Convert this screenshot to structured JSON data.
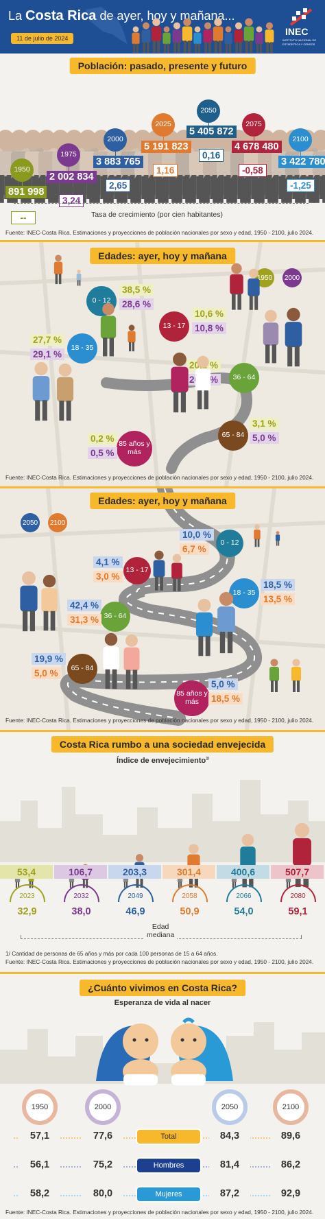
{
  "header": {
    "title_pre": "La",
    "title_bold": "Costa Rica",
    "title_post": "de ayer, hoy y mañana...",
    "date": "11 de julio de 2024",
    "logo": "INEC",
    "logo_sub1": "INSTITUTO NACIONAL DE",
    "logo_sub2": "ESTADÍSTICA Y CENSOS"
  },
  "poblacion": {
    "title": "Población: pasado, presente y futuro",
    "years": [
      {
        "year": "1950",
        "pop": "891 998",
        "rate": "--",
        "color": "#8a9a1e"
      },
      {
        "year": "1975",
        "pop": "2 002 834",
        "rate": "3,24",
        "color": "#7b3a8f"
      },
      {
        "year": "2000",
        "pop": "3 883 765",
        "rate": "2,65",
        "color": "#2e5fa3"
      },
      {
        "year": "2025",
        "pop": "5 191 823",
        "rate": "1,16",
        "color": "#e07a2e"
      },
      {
        "year": "2050",
        "pop": "5 405 872",
        "rate": "0,16",
        "color": "#1f5f8b"
      },
      {
        "year": "2075",
        "pop": "4 678 480",
        "rate": "-0,58",
        "color": "#b2243b"
      },
      {
        "year": "2100",
        "pop": "3 422 780",
        "rate": "-1,25",
        "color": "#2a8ed0"
      }
    ],
    "rate_label": "Tasa de crecimiento (por cien habitantes)",
    "source": "Fuente: INEC-Costa Rica. Estimaciones y proyecciones de población nacionales por sexo y edad, 1950 - 2100, julio 2024."
  },
  "edades1": {
    "title": "Edades: ayer, hoy y mañana",
    "legend": [
      {
        "year": "1950",
        "color": "#a0a11e"
      },
      {
        "year": "2000",
        "color": "#7b3a8f"
      }
    ],
    "groups": [
      {
        "label": "0 - 12",
        "v1": "38,5 %",
        "v2": "28,6 %",
        "color": "#1f7c9a"
      },
      {
        "label": "13 - 17",
        "v1": "10,6 %",
        "v2": "10,8 %",
        "color": "#b0233a"
      },
      {
        "label": "18 - 35",
        "v1": "27,7 %",
        "v2": "29,1 %",
        "color": "#2a8ed0"
      },
      {
        "label": "36 - 64",
        "v1": "20,1 %",
        "v2": "26,1 %",
        "color": "#6aa33a"
      },
      {
        "label": "65 - 84",
        "v1": "3,1 %",
        "v2": "5,0 %",
        "color": "#7a4a1e"
      },
      {
        "label": "85 años y más",
        "v1": "0,2 %",
        "v2": "0,5 %",
        "color": "#b0235f"
      }
    ],
    "source": "Fuente: INEC-Costa Rica. Estimaciones y proyecciones de población nacionales por sexo y edad, 1950 - 2100, julio 2024."
  },
  "edades2": {
    "title": "Edades: ayer, hoy y mañana",
    "legend": [
      {
        "year": "2050",
        "color": "#2e5fa3"
      },
      {
        "year": "2100",
        "color": "#e07a2e"
      }
    ],
    "groups": [
      {
        "label": "0 - 12",
        "v1": "10,0 %",
        "v2": "6,7 %",
        "color": "#1f7c9a"
      },
      {
        "label": "13 - 17",
        "v1": "4,1 %",
        "v2": "3,0 %",
        "color": "#b0233a"
      },
      {
        "label": "18 - 35",
        "v1": "18,5 %",
        "v2": "13,5 %",
        "color": "#2a8ed0"
      },
      {
        "label": "36 - 64",
        "v1": "42,4 %",
        "v2": "31,3 %",
        "color": "#6aa33a"
      },
      {
        "label": "65 - 84",
        "v1": "19,9 %",
        "v2": "5,0 %",
        "color": "#7a4a1e"
      },
      {
        "label": "85 años y más",
        "v1": "5,0 %",
        "v2": "18,5 %",
        "color": "#b0235f"
      }
    ],
    "source": "Fuente: INEC-Costa Rica. Estimaciones y proyecciones de población nacionales por sexo y edad, 1950 - 2100, julio 2024."
  },
  "envejecida": {
    "title": "Costa Rica rumbo a una sociedad envejecida",
    "subtitle": "Índice de envejecimiento",
    "sup": "1/",
    "items": [
      {
        "index": "53,4",
        "year": "2023",
        "median": "32,9",
        "color": "#a0a11e",
        "bg": "#e4e6a9"
      },
      {
        "index": "106,7",
        "year": "2032",
        "median": "38,0",
        "color": "#7b3a8f",
        "bg": "#dcc8e3"
      },
      {
        "index": "203,3",
        "year": "2049",
        "median": "46,9",
        "color": "#2e5fa3",
        "bg": "#c9d7ee"
      },
      {
        "index": "301,4",
        "year": "2058",
        "median": "50,9",
        "color": "#e07a2e",
        "bg": "#f7d8bd"
      },
      {
        "index": "400,6",
        "year": "2066",
        "median": "54,0",
        "color": "#1f7c9a",
        "bg": "#c3dbe4"
      },
      {
        "index": "507,7",
        "year": "2080",
        "median": "59,1",
        "color": "#b0233a",
        "bg": "#eec4cb"
      }
    ],
    "median_label1": "Edad",
    "median_label2": "mediana",
    "note": "1/ Cantidad de personas de 65 años y más por cada 100 personas de 15 a 64 años.",
    "source": "Fuente: INEC-Costa Rica. Estimaciones y proyecciones de población nacionales por sexo y edad, 1950 - 2100, julio 2024."
  },
  "vida": {
    "title": "¿Cuánto vivimos en Costa Rica?",
    "subtitle": "Esperanza de vida al nacer",
    "years": [
      "1950",
      "2000",
      "2050",
      "2100"
    ],
    "rows": [
      {
        "label": "Total",
        "values": [
          "57,1",
          "77,6",
          "84,3",
          "89,6"
        ],
        "bg": "#f7b82b",
        "fg": "#333",
        "line": "#f3c978"
      },
      {
        "label": "Hombres",
        "values": [
          "56,1",
          "75,2",
          "81,4",
          "86,2"
        ],
        "bg": "#1d3f8f",
        "fg": "#fff",
        "line": "#9fb2d8"
      },
      {
        "label": "Mujeres",
        "values": [
          "58,2",
          "80,0",
          "87,2",
          "92,9"
        ],
        "bg": "#2a9ad6",
        "fg": "#fff",
        "line": "#a6d3ee"
      }
    ],
    "source": "Fuente: INEC-Costa Rica. Estimaciones y proyecciones de población nacionales por sexo y edad, 1950 - 2100, julio 2024."
  }
}
